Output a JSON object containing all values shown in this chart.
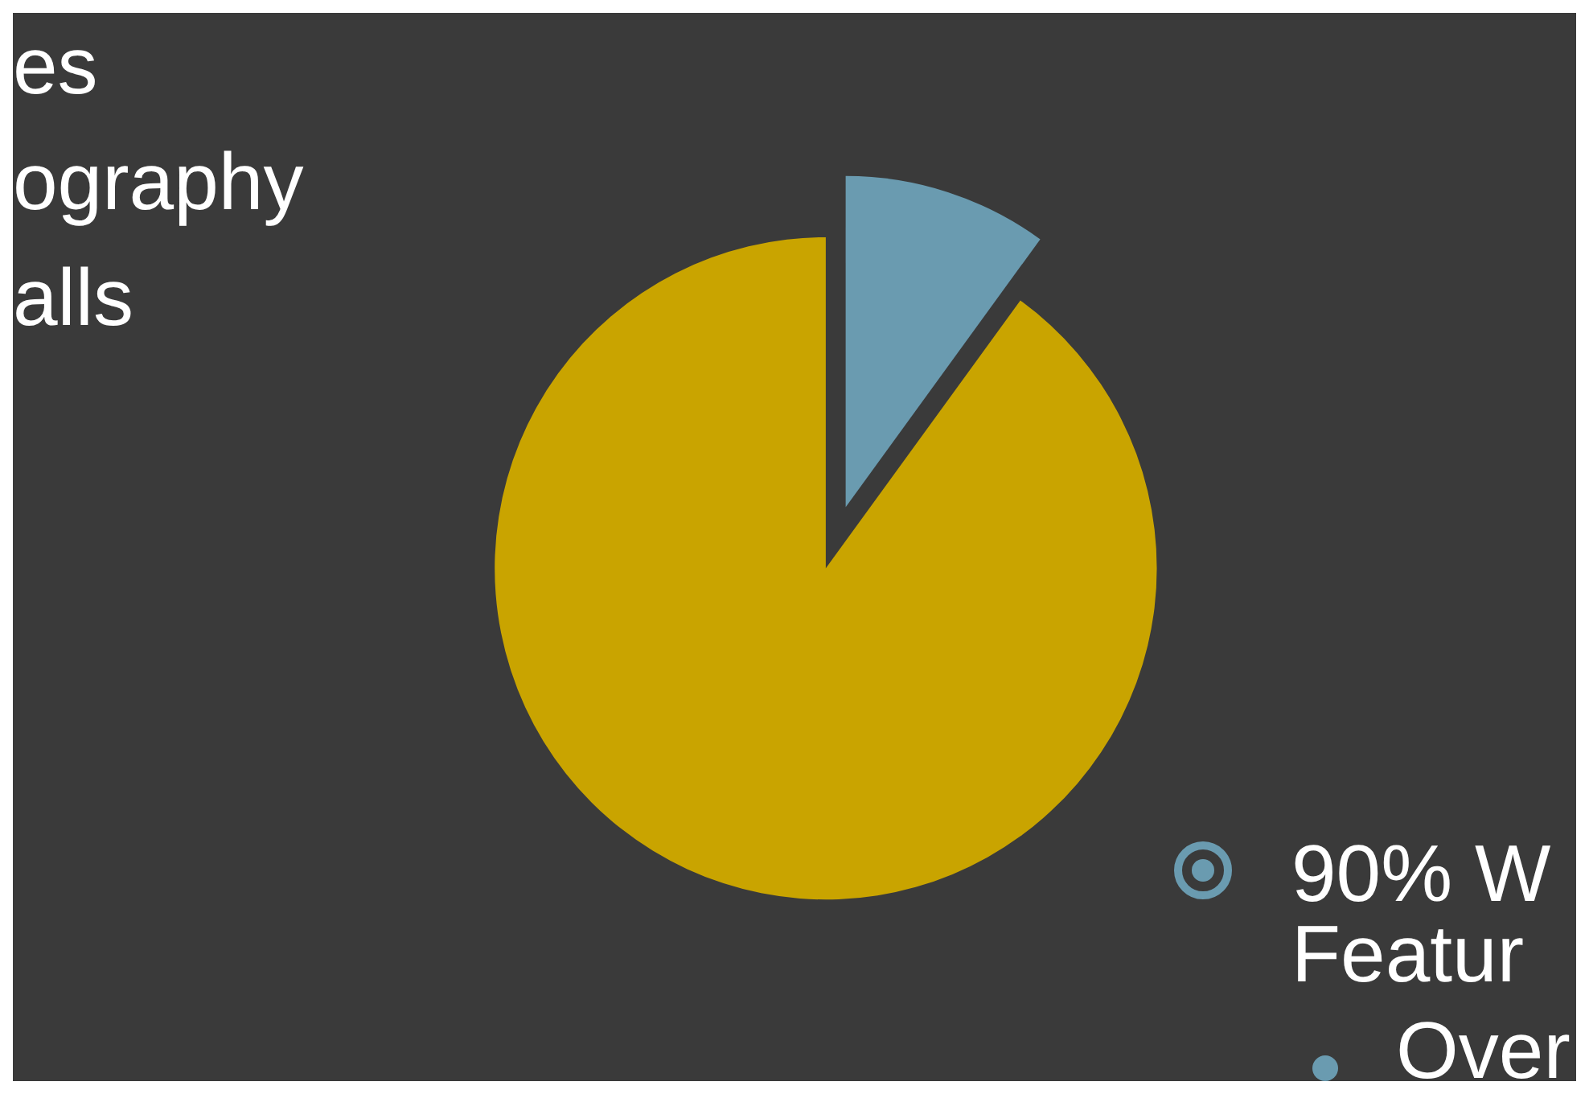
{
  "chart_data": {
    "type": "pie",
    "categories": [
      null,
      null
    ],
    "values": [
      10,
      90
    ],
    "colors": [
      "#6a9bb0",
      "#c9a400"
    ],
    "annotations": [
      "es",
      "ography",
      "alls",
      "90% W",
      "Featur",
      "Over"
    ]
  }
}
